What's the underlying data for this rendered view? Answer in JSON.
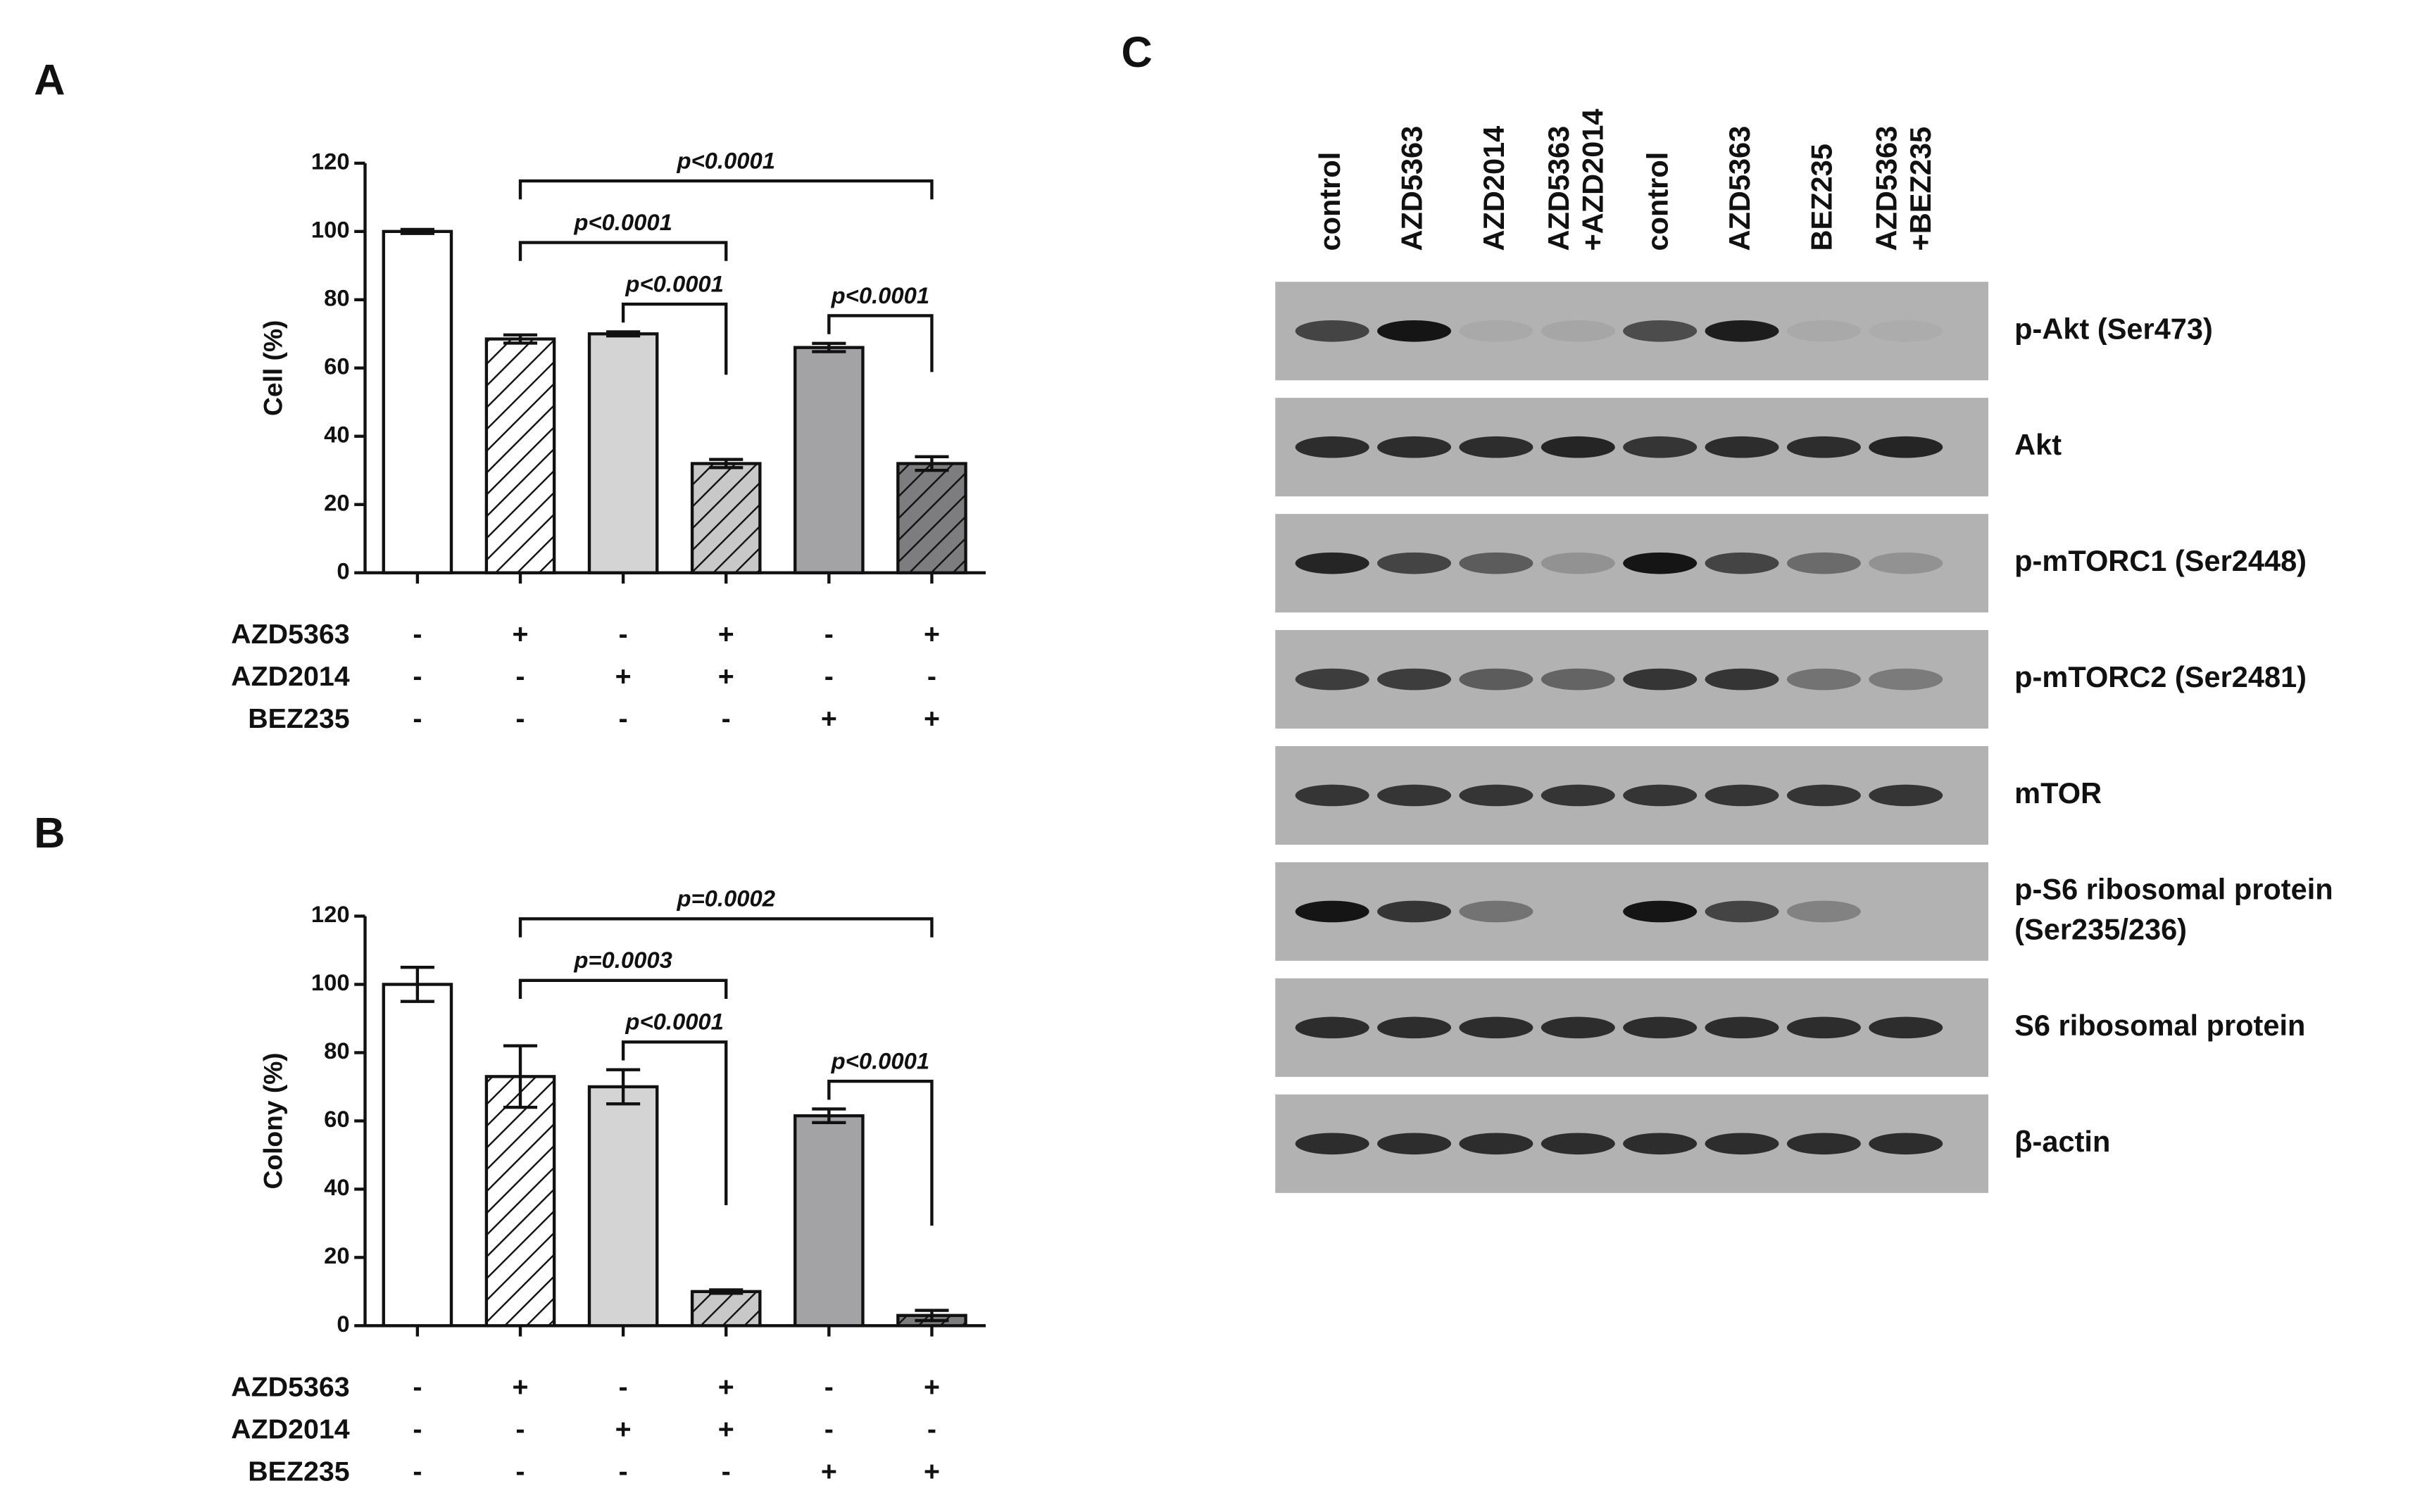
{
  "chart_data": [
    {
      "type": "bar",
      "panel": "A",
      "ylabel": "Cell (%)",
      "ylim": [
        0,
        120
      ],
      "yticks": [
        0,
        20,
        40,
        60,
        80,
        100,
        120
      ],
      "values": [
        100,
        68.5,
        70,
        32,
        66,
        32
      ],
      "errors": [
        0.6,
        1.2,
        0.6,
        1.2,
        1.2,
        2
      ],
      "colors": [
        "#ffffff",
        "#ffffff",
        "#d4d4d4",
        "#c8c8c8",
        "#a3a3a6",
        "#7d7d80"
      ],
      "hatch": [
        false,
        true,
        false,
        true,
        false,
        true
      ],
      "treatments": [
        {
          "name": "AZD5363",
          "marks": [
            "-",
            "+",
            "-",
            "+",
            "-",
            "+"
          ]
        },
        {
          "name": "AZD2014",
          "marks": [
            "-",
            "-",
            "+",
            "+",
            "-",
            "-"
          ]
        },
        {
          "name": "BEZ235",
          "marks": [
            "-",
            "-",
            "-",
            "-",
            "+",
            "+"
          ]
        }
      ],
      "brackets": [
        {
          "from": 2,
          "to": 3,
          "label": "p<0.0001"
        },
        {
          "from": 4,
          "to": 5,
          "label": "p<0.0001"
        },
        {
          "from": 1,
          "to": 3,
          "label": "p<0.0001"
        },
        {
          "from": 1,
          "to": 5,
          "label": "p<0.0001"
        }
      ]
    },
    {
      "type": "bar",
      "panel": "B",
      "ylabel": "Colony (%)",
      "ylim": [
        0,
        120
      ],
      "yticks": [
        0,
        20,
        40,
        60,
        80,
        100,
        120
      ],
      "values": [
        100,
        73,
        70,
        10,
        61.5,
        3
      ],
      "errors": [
        5,
        9,
        5,
        0.5,
        2,
        1.5
      ],
      "colors": [
        "#ffffff",
        "#ffffff",
        "#d4d4d4",
        "#c8c8c8",
        "#a3a3a6",
        "#7d7d80"
      ],
      "hatch": [
        false,
        true,
        false,
        true,
        false,
        true
      ],
      "treatments": [
        {
          "name": "AZD5363",
          "marks": [
            "-",
            "+",
            "-",
            "+",
            "-",
            "+"
          ]
        },
        {
          "name": "AZD2014",
          "marks": [
            "-",
            "-",
            "+",
            "+",
            "-",
            "-"
          ]
        },
        {
          "name": "BEZ235",
          "marks": [
            "-",
            "-",
            "-",
            "-",
            "+",
            "+"
          ]
        }
      ],
      "brackets": [
        {
          "from": 2,
          "to": 3,
          "label": "p<0.0001"
        },
        {
          "from": 4,
          "to": 5,
          "label": "p<0.0001"
        },
        {
          "from": 1,
          "to": 3,
          "label": "p=0.0003"
        },
        {
          "from": 1,
          "to": 5,
          "label": "p=0.0002"
        }
      ]
    }
  ],
  "blot": {
    "panel": "C",
    "lanes": [
      [
        "control"
      ],
      [
        "AZD5363"
      ],
      [
        "AZD2014"
      ],
      [
        "AZD5363",
        "+AZD2014"
      ],
      [
        "control"
      ],
      [
        "AZD5363"
      ],
      [
        "BEZ235"
      ],
      [
        "AZD5363",
        "+BEZ235"
      ]
    ],
    "rows": [
      {
        "label": [
          "p-Akt (Ser473)"
        ],
        "bands": [
          0.7,
          1.0,
          0.05,
          0.08,
          0.65,
          0.95,
          0.05,
          0.04
        ]
      },
      {
        "label": [
          "Akt"
        ],
        "bands": [
          0.85,
          0.85,
          0.85,
          0.9,
          0.8,
          0.85,
          0.85,
          0.9
        ]
      },
      {
        "label": [
          "p-mTORC1 (Ser2448)"
        ],
        "bands": [
          0.9,
          0.7,
          0.55,
          0.2,
          1.0,
          0.7,
          0.45,
          0.2
        ]
      },
      {
        "label": [
          "p-mTORC2 (Ser2481)"
        ],
        "bands": [
          0.75,
          0.75,
          0.55,
          0.5,
          0.8,
          0.8,
          0.4,
          0.35
        ]
      },
      {
        "label": [
          "mTOR"
        ],
        "bands": [
          0.8,
          0.8,
          0.8,
          0.8,
          0.8,
          0.8,
          0.8,
          0.8
        ]
      },
      {
        "label": [
          "p-S6 ribosomal protein",
          "(Ser235/236)"
        ],
        "bands": [
          1.0,
          0.8,
          0.4,
          0.0,
          1.0,
          0.7,
          0.3,
          0.0
        ]
      },
      {
        "label": [
          "S6 ribosomal protein"
        ],
        "bands": [
          0.85,
          0.85,
          0.85,
          0.85,
          0.85,
          0.85,
          0.85,
          0.85
        ]
      },
      {
        "label": [
          "β-actin"
        ],
        "bands": [
          0.85,
          0.85,
          0.85,
          0.85,
          0.85,
          0.85,
          0.85,
          0.85
        ]
      }
    ]
  }
}
